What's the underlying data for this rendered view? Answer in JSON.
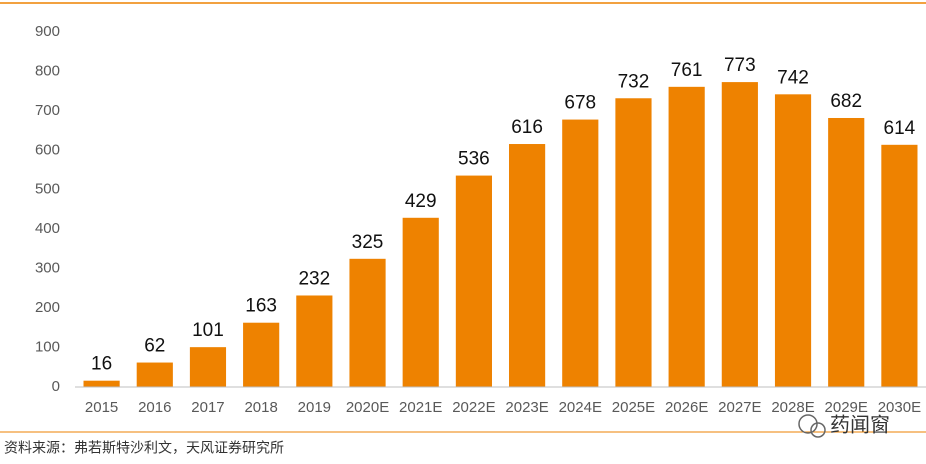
{
  "chart_data": {
    "type": "bar",
    "categories": [
      "2015",
      "2016",
      "2017",
      "2018",
      "2019",
      "2020E",
      "2021E",
      "2022E",
      "2023E",
      "2024E",
      "2025E",
      "2026E",
      "2027E",
      "2028E",
      "2029E",
      "2030E"
    ],
    "values": [
      16,
      62,
      101,
      163,
      232,
      325,
      429,
      536,
      616,
      678,
      732,
      761,
      773,
      742,
      682,
      614
    ],
    "color": "#ee8200",
    "ylim": [
      0,
      900
    ],
    "yticks": [
      0,
      100,
      200,
      300,
      400,
      500,
      600,
      700,
      800,
      900
    ],
    "grid": false,
    "source": "资料来源：弗若斯特沙利文，天风证券研究所",
    "watermark": "药闻窗"
  }
}
